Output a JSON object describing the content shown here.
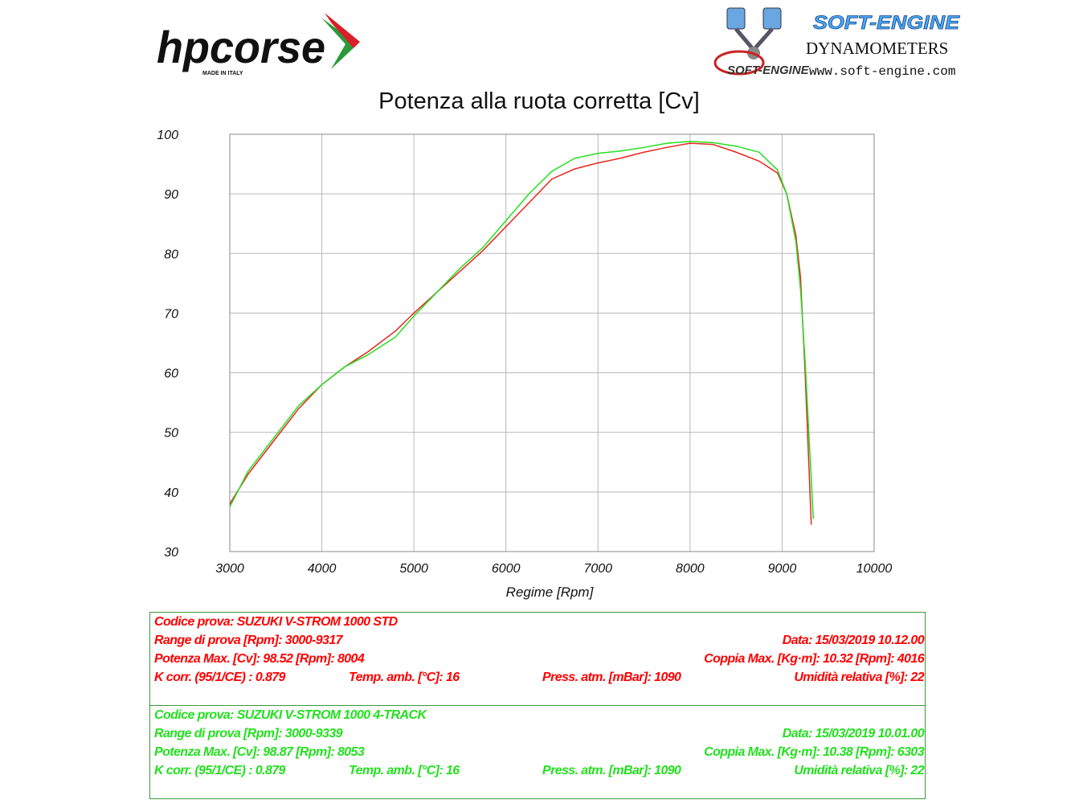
{
  "header": {
    "brand": "hpcorse",
    "brand_tagline": "MADE IN ITALY",
    "dyno_brand": "SOFT-ENGINE",
    "dyno_logo_text": "SOFT-ENGINE",
    "dyno_title": "DYNAMOMETERS",
    "dyno_url": "www.soft-engine.com"
  },
  "chart_data": {
    "type": "line",
    "title": "Potenza alla ruota corretta [Cv]",
    "x_label": "Regime [Rpm]",
    "grid": true,
    "xlim": [
      3000,
      10000
    ],
    "xticks": [
      3000,
      4000,
      5000,
      6000,
      7000,
      8000,
      9000,
      10000
    ],
    "ylim": [
      30,
      100
    ],
    "yticks": [
      30,
      40,
      50,
      60,
      70,
      80,
      90,
      100
    ],
    "series": [
      {
        "color": "#e8261e",
        "x": [
          3000,
          3200,
          3500,
          3750,
          4000,
          4250,
          4500,
          4800,
          5000,
          5250,
          5500,
          5750,
          6000,
          6250,
          6500,
          6750,
          7000,
          7250,
          7500,
          7750,
          8000,
          8250,
          8500,
          8750,
          8950,
          9050,
          9150,
          9200,
          9250,
          9317
        ],
        "values": [
          38,
          43,
          49,
          54,
          58,
          61,
          63.5,
          67,
          70,
          73.5,
          77,
          80.5,
          84.5,
          88.5,
          92.5,
          94.2,
          95.2,
          96,
          97,
          97.8,
          98.5,
          98.3,
          97,
          95.5,
          93.5,
          90,
          83,
          76,
          60,
          34.5
        ]
      },
      {
        "color": "#22e01e",
        "x": [
          3000,
          3200,
          3500,
          3750,
          4000,
          4250,
          4500,
          4800,
          5000,
          5250,
          5500,
          5750,
          6000,
          6250,
          6500,
          6750,
          7000,
          7250,
          7500,
          7750,
          8000,
          8250,
          8500,
          8750,
          8950,
          9050,
          9150,
          9200,
          9250,
          9339
        ],
        "values": [
          37.5,
          43.5,
          49.5,
          54.5,
          58,
          61,
          63,
          66,
          69.5,
          73.5,
          77.5,
          81,
          85.5,
          90,
          93.8,
          96,
          96.8,
          97.2,
          97.8,
          98.5,
          98.8,
          98.6,
          98,
          97,
          94,
          90,
          82,
          74,
          62,
          35.5
        ]
      }
    ]
  },
  "results": [
    {
      "color": "#ff0000",
      "rows": [
        [
          "Codice prova: SUZUKI V-STROM 1000 STD"
        ],
        [
          "Range di prova [Rpm]: 3000-9317",
          "Data: 15/03/2019  10.12.00"
        ],
        [
          "Potenza Max. [Cv]: 98.52  [Rpm]: 8004",
          "Coppia Max. [Kg·m]: 10.32  [Rpm]: 4016"
        ],
        [
          "K corr. (95/1/CE) : 0.879",
          "Temp. amb. [°C]: 16",
          "Press. atm. [mBar]: 1090",
          "Umidità relativa [%]: 22"
        ]
      ]
    },
    {
      "color": "#22e01e",
      "rows": [
        [
          "Codice prova: SUZUKI V-STROM 1000  4-TRACK"
        ],
        [
          "Range di prova [Rpm]: 3000-9339",
          "Data: 15/03/2019  10.01.00"
        ],
        [
          "Potenza Max. [Cv]: 98.87  [Rpm]: 8053",
          "Coppia Max. [Kg·m]: 10.38  [Rpm]: 6303"
        ],
        [
          "K corr. (95/1/CE) : 0.879",
          "Temp. amb. [°C]: 16",
          "Press. atm. [mBar]: 1090",
          "Umidità relativa [%]: 22"
        ]
      ]
    }
  ]
}
